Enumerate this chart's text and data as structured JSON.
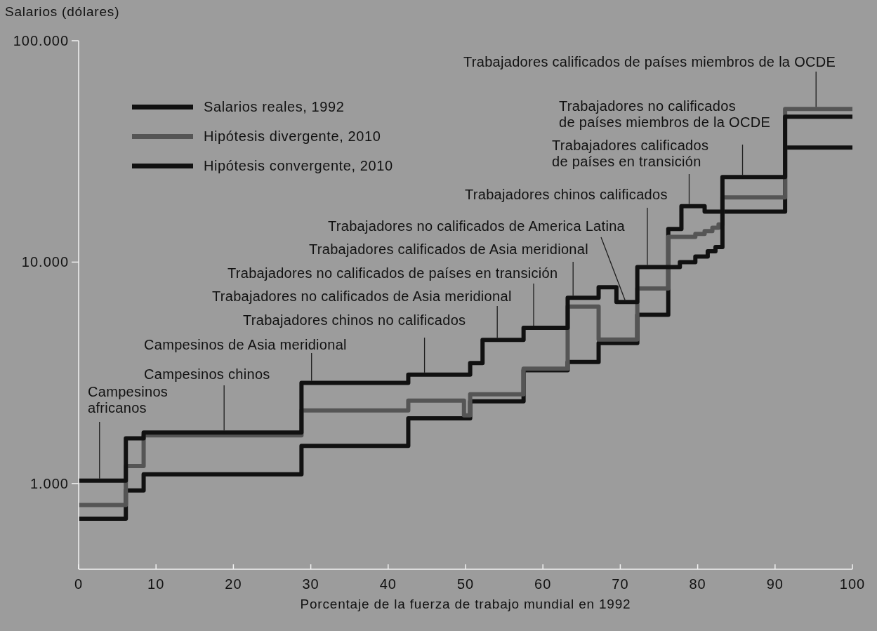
{
  "chart_data": {
    "type": "step",
    "xlabel": "Porcentaje de la fuerza de trabajo mundial en 1992",
    "ylabel": "Salarios (dólares)",
    "xlim": [
      0,
      100
    ],
    "xticks": [
      0,
      10,
      20,
      30,
      40,
      50,
      60,
      70,
      80,
      90,
      100
    ],
    "ylim": [
      410,
      100000
    ],
    "yticks": [
      {
        "value": 1000,
        "label": "1.000"
      },
      {
        "value": 10000,
        "label": "10.000"
      },
      {
        "value": 100000,
        "label": "100.000"
      }
    ],
    "log": "y",
    "legend": "top left",
    "line_style": "solid",
    "series": [
      {
        "name": "Salarios reales, 1992",
        "color": "#111111",
        "x": [
          0,
          6.1,
          8.4,
          28.8,
          42.6,
          50.6,
          57.5,
          63.2,
          67.2,
          72.2,
          76.2,
          77.9,
          80.9,
          91.3,
          100
        ],
        "values": [
          694,
          930,
          1100,
          1480,
          1970,
          2350,
          3250,
          3540,
          4310,
          5780,
          14100,
          17900,
          16900,
          32900,
          32900
        ]
      },
      {
        "name": "Hipótesis divergente, 2010",
        "color": "#555555",
        "x": [
          0,
          6.1,
          8.4,
          28.8,
          42.6,
          49.8,
          50.6,
          57.5,
          63.2,
          67.2,
          72.2,
          76.2,
          79.7,
          80.9,
          81.9,
          82.7,
          83.2,
          91.3,
          100
        ],
        "values": [
          800,
          1200,
          1650,
          2140,
          2370,
          2030,
          2530,
          3300,
          6300,
          4470,
          7600,
          13000,
          13400,
          13800,
          14300,
          14800,
          19600,
          49200,
          49200
        ]
      },
      {
        "name": "Hipótesis convergente, 2010",
        "color": "#111111",
        "x": [
          0,
          6.1,
          8.4,
          28.8,
          42.6,
          50.6,
          52.2,
          57.5,
          63.2,
          67.2,
          69.5,
          72.2,
          77.7,
          79.7,
          81.3,
          82.3,
          83.2,
          91.3,
          100
        ],
        "values": [
          1030,
          1600,
          1700,
          2850,
          3100,
          3500,
          4450,
          5050,
          6900,
          7700,
          6600,
          9500,
          10000,
          10600,
          11200,
          11700,
          24200,
          45400,
          45400
        ]
      }
    ],
    "annotations": [
      {
        "text": "Campesinos africanos",
        "x": 2.7,
        "y": 1030
      },
      {
        "text": "Campesinos chinos",
        "x": 18.8,
        "y": 1700
      },
      {
        "text": "Campesinos de Asia meridional",
        "x": 30.1,
        "y": 2850
      },
      {
        "text": "Trabajadores chinos no calificados",
        "x": 44.7,
        "y": 3100
      },
      {
        "text": "Trabajadores no calificados de Asia meridional",
        "x": 54.1,
        "y": 4450
      },
      {
        "text": "Trabajadores no calificados de países en transición",
        "x": 58.8,
        "y": 5050
      },
      {
        "text": "Trabajadores calificados de Asia meridional",
        "x": 63.9,
        "y": 6900
      },
      {
        "text": "Trabajadores no calificados de America Latina",
        "x": 70.6,
        "y": 6600
      },
      {
        "text": "Trabajadores chinos calificados",
        "x": 73.5,
        "y": 9500
      },
      {
        "text": "Trabajadores calificados de países en transición",
        "x": 78.9,
        "y": 17900
      },
      {
        "text": "Trabajadores no calificados de países miembros de la OCDE",
        "x": 85.8,
        "y": 24200
      },
      {
        "text": "Trabajadores calificados de países miembros de la OCDE",
        "x": 95.3,
        "y": 49200
      }
    ]
  }
}
